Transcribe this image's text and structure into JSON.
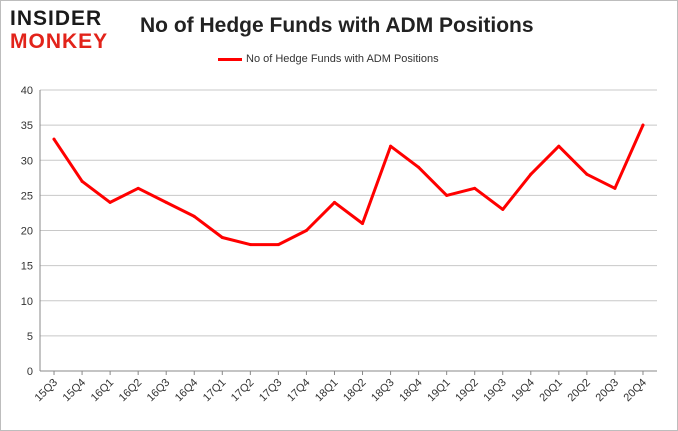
{
  "logo": {
    "line1": "INSIDER",
    "line2": "MONKEY"
  },
  "chart_data": {
    "type": "line",
    "title": "No of Hedge Funds with ADM Positions",
    "categories": [
      "15Q3",
      "15Q4",
      "16Q1",
      "16Q2",
      "16Q3",
      "16Q4",
      "17Q1",
      "17Q2",
      "17Q3",
      "17Q4",
      "18Q1",
      "18Q2",
      "18Q3",
      "18Q4",
      "19Q1",
      "19Q2",
      "19Q3",
      "19Q4",
      "20Q1",
      "20Q2",
      "20Q3",
      "20Q4"
    ],
    "series": [
      {
        "name": "No of Hedge Funds with ADM Positions",
        "color": "#ff0000",
        "values": [
          33,
          27,
          24,
          26,
          24,
          22,
          19,
          18,
          18,
          20,
          24,
          21,
          32,
          29,
          25,
          26,
          23,
          28,
          32,
          28,
          26,
          35
        ]
      }
    ],
    "ylim": [
      0,
      40
    ],
    "yticks": [
      0,
      5,
      10,
      15,
      20,
      25,
      30,
      35,
      40
    ],
    "grid": true,
    "legend": "top-center"
  }
}
